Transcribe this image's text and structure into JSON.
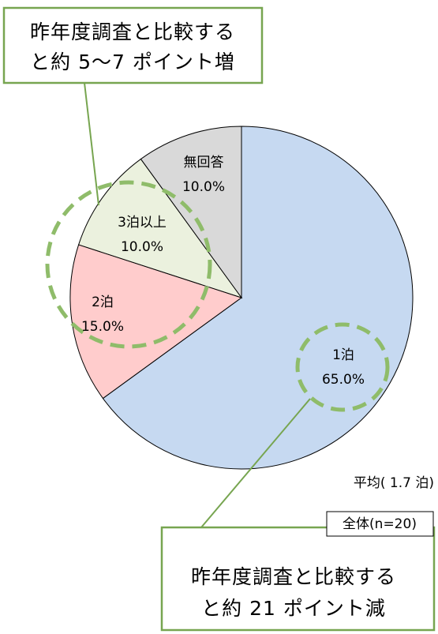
{
  "chart_data": {
    "type": "pie",
    "categories": [
      "1泊",
      "2泊",
      "3泊以上",
      "無回答"
    ],
    "values": [
      65,
      15,
      10,
      10
    ],
    "value_labels": [
      "65.0%",
      "15.0%",
      "10.0%",
      "10.0%"
    ],
    "colors": [
      "#c6d9f1",
      "#ffcccc",
      "#ebf1de",
      "#d9d9d9"
    ],
    "note": "平均( 1.7 泊)",
    "sample": "全体(n=20)",
    "annotations": [
      {
        "lines": [
          "昨年度調査と比較する",
          "と約 5～7 ポイント増"
        ]
      },
      {
        "lines": [
          "昨年度調査と比較する",
          "と約 21 ポイント減"
        ]
      }
    ]
  }
}
